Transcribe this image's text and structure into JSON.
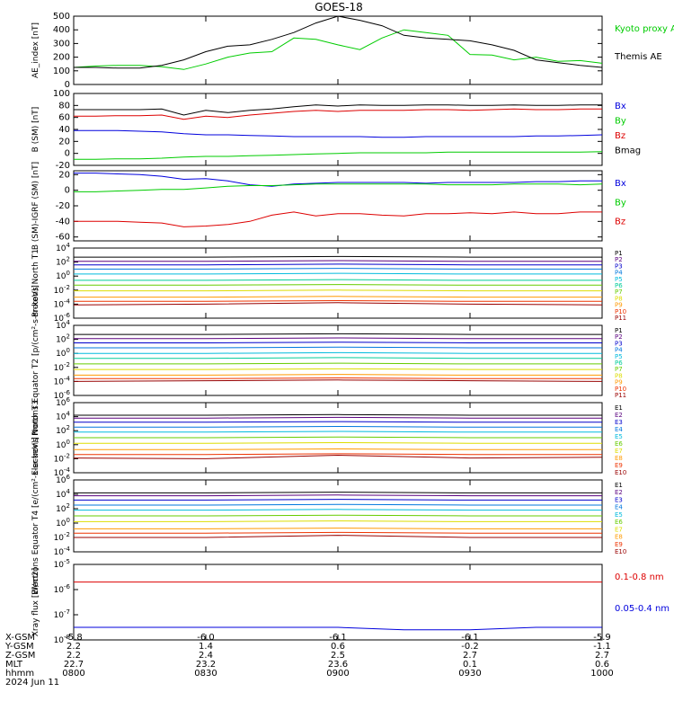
{
  "title": "GOES-18",
  "date_label": "2024 Jun 11",
  "ephemeris": {
    "rows": [
      {
        "label": "X-GSM",
        "values": [
          "-5.8",
          "-6.0",
          "-6.1",
          "-6.1",
          "-5.9"
        ]
      },
      {
        "label": "Y-GSM",
        "values": [
          "2.2",
          "1.4",
          "0.6",
          "-0.2",
          "-1.1"
        ]
      },
      {
        "label": "Z-GSM",
        "values": [
          "2.2",
          "2.4",
          "2.5",
          "2.7",
          "2.7"
        ]
      },
      {
        "label": "MLT",
        "values": [
          "22.7",
          "23.2",
          "23.6",
          "0.1",
          "0.6"
        ]
      },
      {
        "label": "hhmm",
        "values": [
          "0800",
          "0830",
          "0900",
          "0930",
          "1000"
        ]
      }
    ]
  },
  "colors": {
    "black": "#000000",
    "blue": "#0000dd",
    "green": "#00cc00",
    "red": "#dd0000",
    "channel_colors": [
      "#000000",
      "#5a007f",
      "#0000cc",
      "#0077dd",
      "#00bbdd",
      "#00cc99",
      "#66cc00",
      "#dddd00",
      "#ff9900",
      "#ee3300",
      "#cc0000",
      "#990000"
    ]
  },
  "chart_data": [
    {
      "type": "line",
      "ylabel": "AE_index [nT]",
      "ylim": [
        0,
        500
      ],
      "yticks": [
        "0",
        "100",
        "200",
        "300",
        "400",
        "500"
      ],
      "x": [
        "0800",
        "0805",
        "0810",
        "0815",
        "0820",
        "0825",
        "0830",
        "0835",
        "0840",
        "0845",
        "0850",
        "0855",
        "0900",
        "0905",
        "0910",
        "0915",
        "0920",
        "0925",
        "0930",
        "0935",
        "0940",
        "0945",
        "0950",
        "0955",
        "1000"
      ],
      "series": [
        {
          "name": "Kyoto proxy AE",
          "color": "#00cc00",
          "values": [
            125,
            135,
            140,
            140,
            130,
            110,
            150,
            200,
            230,
            240,
            340,
            330,
            290,
            255,
            340,
            400,
            380,
            360,
            220,
            215,
            180,
            200,
            170,
            175,
            155
          ]
        },
        {
          "name": "Themis AE",
          "color": "#000000",
          "values": [
            125,
            125,
            120,
            120,
            140,
            180,
            240,
            280,
            290,
            330,
            380,
            450,
            500,
            470,
            430,
            360,
            340,
            330,
            320,
            290,
            250,
            180,
            160,
            140,
            125
          ]
        }
      ]
    },
    {
      "type": "line",
      "ylabel": "B (SM) [nT]",
      "ylim": [
        -20,
        100
      ],
      "yticks": [
        "-20",
        "0",
        "20",
        "40",
        "60",
        "80",
        "100"
      ],
      "x": [
        "0800",
        "0805",
        "0810",
        "0815",
        "0820",
        "0825",
        "0830",
        "0835",
        "0840",
        "0845",
        "0850",
        "0855",
        "0900",
        "0905",
        "0910",
        "0915",
        "0920",
        "0925",
        "0930",
        "0935",
        "0940",
        "0945",
        "0950",
        "0955",
        "1000"
      ],
      "series": [
        {
          "name": "Bx",
          "color": "#0000dd",
          "values": [
            38,
            38,
            38,
            37,
            36,
            33,
            31,
            31,
            30,
            29,
            28,
            28,
            28,
            28,
            27,
            27,
            28,
            28,
            28,
            28,
            28,
            29,
            29,
            30,
            31
          ]
        },
        {
          "name": "By",
          "color": "#00cc00",
          "values": [
            -10,
            -10,
            -9,
            -9,
            -8,
            -6,
            -5,
            -5,
            -4,
            -3,
            -2,
            -1,
            0,
            1,
            1,
            1,
            1,
            2,
            2,
            2,
            2,
            2,
            2,
            2,
            3
          ]
        },
        {
          "name": "Bz",
          "color": "#dd0000",
          "values": [
            62,
            62,
            63,
            63,
            64,
            57,
            62,
            60,
            64,
            67,
            70,
            72,
            70,
            72,
            72,
            72,
            73,
            73,
            72,
            73,
            74,
            73,
            73,
            74,
            74
          ]
        },
        {
          "name": "Bmag",
          "color": "#000000",
          "values": [
            73,
            73,
            73,
            73,
            74,
            64,
            72,
            68,
            72,
            74,
            78,
            81,
            79,
            81,
            80,
            80,
            81,
            81,
            80,
            80,
            81,
            80,
            80,
            81,
            81
          ]
        }
      ]
    },
    {
      "type": "line",
      "ylabel": "B (SM)-IGRF (SM) [nT]",
      "ylim": [
        -65,
        25
      ],
      "yticks": [
        "-60",
        "-40",
        "-20",
        "0",
        "20"
      ],
      "x": [
        "0800",
        "0805",
        "0810",
        "0815",
        "0820",
        "0825",
        "0830",
        "0835",
        "0840",
        "0845",
        "0850",
        "0855",
        "0900",
        "0905",
        "0910",
        "0915",
        "0920",
        "0925",
        "0930",
        "0935",
        "0940",
        "0945",
        "0950",
        "0955",
        "1000"
      ],
      "series": [
        {
          "name": "Bx",
          "color": "#0000dd",
          "values": [
            22,
            22,
            21,
            20,
            18,
            14,
            15,
            12,
            7,
            5,
            8,
            9,
            10,
            10,
            10,
            10,
            9,
            10,
            10,
            10,
            10,
            11,
            11,
            12,
            12
          ]
        },
        {
          "name": "By",
          "color": "#00cc00",
          "values": [
            -2,
            -2,
            -1,
            0,
            1,
            1,
            3,
            5,
            6,
            6,
            7,
            8,
            8,
            8,
            8,
            8,
            8,
            7,
            7,
            7,
            8,
            8,
            8,
            7,
            8
          ]
        },
        {
          "name": "Bz",
          "color": "#dd0000",
          "values": [
            -40,
            -40,
            -40,
            -41,
            -42,
            -47,
            -46,
            -44,
            -40,
            -32,
            -28,
            -33,
            -30,
            -30,
            -32,
            -33,
            -30,
            -30,
            -29,
            -30,
            -28,
            -30,
            -30,
            -28,
            -28
          ]
        }
      ]
    },
    {
      "type": "line",
      "ylabel": "Protons North T1",
      "yscale": "log",
      "ylim_exp": [
        -6,
        4
      ],
      "ytick_exps": [
        -6,
        -4,
        -2,
        0,
        2,
        4
      ],
      "x": [
        "0800",
        "0830",
        "0900",
        "0930",
        "1000"
      ],
      "series": [
        {
          "name": "P1",
          "color": "#000000",
          "log_values": [
            2.7,
            2.7,
            2.8,
            2.7,
            2.7
          ]
        },
        {
          "name": "P2",
          "color": "#5a007f",
          "log_values": [
            2.1,
            2.1,
            2.2,
            2.1,
            2.1
          ]
        },
        {
          "name": "P3",
          "color": "#0000cc",
          "log_values": [
            1.6,
            1.6,
            1.7,
            1.6,
            1.6
          ]
        },
        {
          "name": "P4",
          "color": "#0077dd",
          "log_values": [
            1.0,
            1.0,
            1.1,
            1.0,
            1.0
          ]
        },
        {
          "name": "P5",
          "color": "#00bbdd",
          "log_values": [
            0.3,
            0.3,
            0.4,
            0.3,
            0.3
          ]
        },
        {
          "name": "P6",
          "color": "#00cc99",
          "log_values": [
            -0.6,
            -0.6,
            -0.5,
            -0.6,
            -0.6
          ]
        },
        {
          "name": "P7",
          "color": "#66cc00",
          "log_values": [
            -1.3,
            -1.3,
            -1.2,
            -1.3,
            -1.3
          ]
        },
        {
          "name": "P8",
          "color": "#dddd00",
          "log_values": [
            -2.1,
            -2.1,
            -2.0,
            -2.1,
            -2.1
          ]
        },
        {
          "name": "P9",
          "color": "#ff9900",
          "log_values": [
            -3.0,
            -3.0,
            -2.9,
            -3.0,
            -3.0
          ]
        },
        {
          "name": "P10",
          "color": "#ee3300",
          "log_values": [
            -3.6,
            -3.6,
            -3.5,
            -3.6,
            -3.6
          ]
        },
        {
          "name": "P11",
          "color": "#990000",
          "log_values": [
            -4.1,
            -4.0,
            -3.8,
            -4.0,
            -4.1
          ]
        }
      ]
    },
    {
      "type": "line",
      "ylabel": "Protons Equator T2 [p/(cm²-s-sr-keV)]",
      "yscale": "log",
      "ylim_exp": [
        -6,
        4
      ],
      "ytick_exps": [
        -6,
        -4,
        -2,
        0,
        2,
        4
      ],
      "x": [
        "0800",
        "0830",
        "0900",
        "0930",
        "1000"
      ],
      "series": [
        {
          "name": "P1",
          "color": "#000000",
          "log_values": [
            2.7,
            2.7,
            2.8,
            2.7,
            2.7
          ]
        },
        {
          "name": "P2",
          "color": "#5a007f",
          "log_values": [
            2.1,
            2.1,
            2.2,
            2.1,
            2.1
          ]
        },
        {
          "name": "P3",
          "color": "#0000cc",
          "log_values": [
            1.5,
            1.5,
            1.6,
            1.5,
            1.5
          ]
        },
        {
          "name": "P4",
          "color": "#0077dd",
          "log_values": [
            0.8,
            0.8,
            0.9,
            0.8,
            0.8
          ]
        },
        {
          "name": "P5",
          "color": "#00bbdd",
          "log_values": [
            0.0,
            0.0,
            0.1,
            0.0,
            0.0
          ]
        },
        {
          "name": "P6",
          "color": "#00cc99",
          "log_values": [
            -0.7,
            -0.7,
            -0.6,
            -0.7,
            -0.7
          ]
        },
        {
          "name": "P7",
          "color": "#66cc00",
          "log_values": [
            -1.5,
            -1.5,
            -1.4,
            -1.5,
            -1.5
          ]
        },
        {
          "name": "P8",
          "color": "#dddd00",
          "log_values": [
            -2.3,
            -2.3,
            -2.2,
            -2.3,
            -2.3
          ]
        },
        {
          "name": "P9",
          "color": "#ff9900",
          "log_values": [
            -3.1,
            -3.1,
            -3.0,
            -3.1,
            -3.1
          ]
        },
        {
          "name": "P10",
          "color": "#ee3300",
          "log_values": [
            -3.6,
            -3.6,
            -3.5,
            -3.6,
            -3.6
          ]
        },
        {
          "name": "P11",
          "color": "#990000",
          "log_values": [
            -4.0,
            -3.9,
            -3.8,
            -3.9,
            -4.0
          ]
        }
      ]
    },
    {
      "type": "line",
      "ylabel": "Electrons North T3",
      "yscale": "log",
      "ylim_exp": [
        -4,
        6
      ],
      "ytick_exps": [
        -4,
        -2,
        0,
        2,
        4,
        6
      ],
      "x": [
        "0800",
        "0830",
        "0900",
        "0930",
        "1000"
      ],
      "series": [
        {
          "name": "E1",
          "color": "#000000",
          "log_values": [
            4.2,
            4.2,
            4.3,
            4.2,
            4.2
          ]
        },
        {
          "name": "E2",
          "color": "#5a007f",
          "log_values": [
            3.8,
            3.8,
            3.9,
            3.8,
            3.8
          ]
        },
        {
          "name": "E3",
          "color": "#0000cc",
          "log_values": [
            3.2,
            3.2,
            3.3,
            3.2,
            3.2
          ]
        },
        {
          "name": "E4",
          "color": "#0077dd",
          "log_values": [
            2.5,
            2.5,
            2.6,
            2.5,
            2.5
          ]
        },
        {
          "name": "E5",
          "color": "#00bbdd",
          "log_values": [
            1.8,
            1.8,
            1.9,
            1.8,
            1.8
          ]
        },
        {
          "name": "E6",
          "color": "#66cc00",
          "log_values": [
            1.0,
            1.0,
            1.1,
            1.0,
            1.0
          ]
        },
        {
          "name": "E7",
          "color": "#dddd00",
          "log_values": [
            0.2,
            0.2,
            0.3,
            0.2,
            0.2
          ]
        },
        {
          "name": "E8",
          "color": "#ff9900",
          "log_values": [
            -0.7,
            -0.7,
            -0.6,
            -0.7,
            -0.7
          ]
        },
        {
          "name": "E9",
          "color": "#ee3300",
          "log_values": [
            -1.4,
            -1.4,
            -1.3,
            -1.4,
            -1.4
          ]
        },
        {
          "name": "E10",
          "color": "#990000",
          "log_values": [
            -1.9,
            -2.0,
            -1.5,
            -1.9,
            -1.8
          ]
        }
      ]
    },
    {
      "type": "line",
      "ylabel": "Electrons Equator T4 [e/(cm²-s-sr-keV)]",
      "yscale": "log",
      "ylim_exp": [
        -4,
        6
      ],
      "ytick_exps": [
        -4,
        -2,
        0,
        2,
        4,
        6
      ],
      "x": [
        "0800",
        "0830",
        "0900",
        "0930",
        "1000"
      ],
      "series": [
        {
          "name": "E1",
          "color": "#000000",
          "log_values": [
            4.2,
            4.2,
            4.3,
            4.2,
            4.2
          ]
        },
        {
          "name": "E2",
          "color": "#5a007f",
          "log_values": [
            3.8,
            3.8,
            3.9,
            3.8,
            3.8
          ]
        },
        {
          "name": "E3",
          "color": "#0000cc",
          "log_values": [
            3.2,
            3.2,
            3.3,
            3.2,
            3.2
          ]
        },
        {
          "name": "E4",
          "color": "#0077dd",
          "log_values": [
            2.5,
            2.5,
            2.6,
            2.5,
            2.5
          ]
        },
        {
          "name": "E5",
          "color": "#00bbdd",
          "log_values": [
            1.8,
            1.8,
            1.9,
            1.8,
            1.8
          ]
        },
        {
          "name": "E6",
          "color": "#66cc00",
          "log_values": [
            1.0,
            1.0,
            1.1,
            1.0,
            1.0
          ]
        },
        {
          "name": "E7",
          "color": "#dddd00",
          "log_values": [
            0.2,
            0.2,
            0.3,
            0.2,
            0.2
          ]
        },
        {
          "name": "E8",
          "color": "#ff9900",
          "log_values": [
            -0.8,
            -0.8,
            -0.7,
            -0.8,
            -0.8
          ]
        },
        {
          "name": "E9",
          "color": "#ee3300",
          "log_values": [
            -1.4,
            -1.4,
            -1.3,
            -1.4,
            -1.4
          ]
        },
        {
          "name": "E10",
          "color": "#990000",
          "log_values": [
            -2.0,
            -2.0,
            -1.7,
            -2.0,
            -2.0
          ]
        }
      ]
    },
    {
      "type": "line",
      "ylabel": "Xray flux [W/m2]",
      "yscale": "log",
      "ylim_exp": [
        -8,
        -5
      ],
      "ytick_exps": [
        -8,
        -7,
        -6,
        -5
      ],
      "x": [
        "0800",
        "0815",
        "0830",
        "0845",
        "0900",
        "0915",
        "0930",
        "0945",
        "1000"
      ],
      "series": [
        {
          "name": "0.1-0.8 nm",
          "color": "#dd0000",
          "log_values": [
            -5.7,
            -5.7,
            -5.7,
            -5.7,
            -5.7,
            -5.7,
            -5.7,
            -5.7,
            -5.7
          ]
        },
        {
          "name": "0.05-0.4 nm",
          "color": "#0000dd",
          "log_values": [
            -7.5,
            -7.5,
            -7.5,
            -7.5,
            -7.5,
            -7.6,
            -7.6,
            -7.5,
            -7.5
          ]
        }
      ]
    }
  ]
}
